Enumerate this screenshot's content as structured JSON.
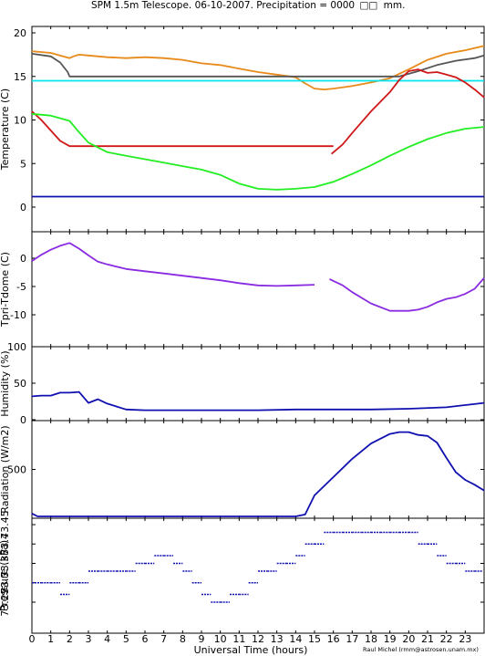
{
  "header": {
    "title": "SPM 1.5m Telescope. 06-10-2007. Precipitation = 0000",
    "title_units": "mm."
  },
  "footer": {
    "xlabel": "Universal Time (hours)",
    "credit": "Raul Michel (rmm@astrosen.unam.mx)"
  },
  "chart_data": [
    {
      "type": "line",
      "panel": "temperature",
      "ylabel": "Temperature (C)",
      "ylim": [
        0,
        20
      ],
      "yticks": [
        "0",
        "5",
        "10",
        "15",
        "20"
      ],
      "xlim": [
        0,
        24
      ],
      "xticks": [
        "0",
        "1",
        "2",
        "3",
        "4",
        "5",
        "6",
        "7",
        "8",
        "9",
        "10",
        "11",
        "12",
        "13",
        "14",
        "15",
        "16",
        "17",
        "18",
        "19",
        "20",
        "21",
        "22",
        "23"
      ],
      "series": [
        {
          "color": "#e88a1a",
          "x": [
            0,
            1,
            2,
            2.2,
            2.5,
            3,
            4,
            5,
            6,
            7,
            8,
            9,
            10,
            11,
            12,
            13,
            14,
            14.5,
            15,
            15.5,
            16,
            17,
            18,
            19,
            20,
            21,
            22,
            23,
            24
          ],
          "y": [
            17.9,
            17.7,
            17.1,
            17.3,
            17.5,
            17.4,
            17.2,
            17.1,
            17.2,
            17.1,
            16.9,
            16.5,
            16.3,
            15.9,
            15.5,
            15.2,
            14.9,
            14.2,
            13.6,
            13.5,
            13.6,
            13.9,
            14.3,
            14.8,
            15.8,
            16.9,
            17.6,
            18.0,
            18.5
          ]
        },
        {
          "color": "#555555",
          "x": [
            0,
            1,
            1.5,
            1.9,
            2,
            3,
            6,
            10,
            14,
            16,
            18,
            19.5,
            20.5,
            21.5,
            22.5,
            23.5,
            24
          ],
          "y": [
            17.6,
            17.3,
            16.6,
            15.5,
            15.0,
            15.0,
            15.0,
            15.0,
            15.0,
            15.0,
            15.0,
            15.0,
            15.6,
            16.3,
            16.8,
            17.1,
            17.4
          ]
        },
        {
          "color": "#00e5ee",
          "x": [
            0,
            24
          ],
          "y": [
            14.5,
            14.5
          ]
        },
        {
          "color": "#d01818",
          "x": [
            0,
            0.5,
            1,
            1.5,
            2,
            4,
            8,
            12,
            16
          ],
          "y": [
            11.0,
            10.0,
            8.8,
            7.6,
            7.0,
            7.0,
            7.0,
            7.0,
            7.0
          ]
        },
        {
          "color": "#d01818",
          "x": [
            15.9,
            16.5,
            17,
            18,
            19,
            19.5,
            20,
            20.5,
            21,
            21.5,
            22,
            22.5,
            23,
            23.5,
            24
          ],
          "y": [
            6.1,
            7.2,
            8.5,
            11.0,
            13.2,
            14.6,
            15.6,
            15.8,
            15.4,
            15.5,
            15.2,
            14.9,
            14.3,
            13.5,
            12.6
          ]
        },
        {
          "color": "#22ee22",
          "x": [
            0,
            1,
            2,
            2.5,
            3,
            4,
            5,
            6,
            7,
            8,
            9,
            10,
            11,
            12,
            13,
            14,
            15,
            16,
            17,
            18,
            19,
            20,
            21,
            22,
            23,
            24
          ],
          "y": [
            10.7,
            10.5,
            9.9,
            8.6,
            7.4,
            6.3,
            5.9,
            5.5,
            5.1,
            4.7,
            4.3,
            3.7,
            2.7,
            2.1,
            2.0,
            2.1,
            2.3,
            2.9,
            3.8,
            4.8,
            5.9,
            6.9,
            7.8,
            8.5,
            9.0,
            9.2
          ]
        },
        {
          "color": "#1010b0",
          "x": [
            0,
            24
          ],
          "y": [
            1.2,
            1.2
          ]
        }
      ]
    },
    {
      "type": "line",
      "panel": "temperature-difference",
      "ylabel": "Tpri-Tdome (C)",
      "ylim": [
        -10,
        2
      ],
      "yticks": [
        "0",
        "-5",
        "-10"
      ],
      "series": [
        {
          "color": "#8a2be2",
          "x": [
            0,
            0.5,
            1,
            1.5,
            2,
            2.5,
            3,
            3.5,
            4,
            5,
            6,
            7,
            8,
            9,
            10,
            11,
            12,
            13,
            14,
            15
          ],
          "y": [
            -0.5,
            0.6,
            1.5,
            2.2,
            2.7,
            1.7,
            0.5,
            -0.6,
            -1.1,
            -1.9,
            -2.3,
            -2.7,
            -3.1,
            -3.5,
            -3.9,
            -4.4,
            -4.8,
            -4.9,
            -4.8,
            -4.7
          ]
        },
        {
          "color": "#8a2be2",
          "x": [
            15.8,
            16.5,
            17,
            18,
            19,
            20,
            20.5,
            21,
            21.5,
            22,
            22.5,
            23,
            23.5,
            24
          ],
          "y": [
            -3.7,
            -4.8,
            -6.0,
            -8.0,
            -9.3,
            -9.3,
            -9.1,
            -8.6,
            -7.8,
            -7.2,
            -6.9,
            -6.3,
            -5.4,
            -3.5
          ]
        }
      ]
    },
    {
      "type": "line",
      "panel": "humidity",
      "ylabel": "Humidity (%)",
      "ylim": [
        0,
        100
      ],
      "yticks": [
        "0",
        "50",
        "100"
      ],
      "series": [
        {
          "color": "#1010b0",
          "x": [
            0,
            0.5,
            1,
            1.5,
            2,
            2.5,
            3,
            3.5,
            4,
            5,
            6,
            8,
            10,
            12,
            14,
            16,
            18,
            20,
            22,
            23,
            24
          ],
          "y": [
            32,
            33,
            33,
            37,
            37,
            38,
            23,
            28,
            22,
            14,
            13,
            13,
            13,
            13,
            14,
            14,
            14,
            15,
            17,
            20,
            23
          ]
        }
      ]
    },
    {
      "type": "line",
      "panel": "radiation",
      "ylabel": "Radiation (W/m2)",
      "ylim": [
        0,
        1000
      ],
      "yticks": [
        "500"
      ],
      "series": [
        {
          "color": "#1010b0",
          "x": [
            0,
            0.3,
            1,
            5,
            10,
            14,
            14.5,
            15,
            16,
            17,
            18,
            19,
            19.5,
            20,
            20.5,
            21,
            21.5,
            22,
            22.5,
            23,
            23.5,
            24
          ],
          "y": [
            40,
            10,
            10,
            10,
            10,
            10,
            30,
            230,
            420,
            610,
            770,
            870,
            890,
            890,
            860,
            850,
            780,
            620,
            470,
            390,
            340,
            280
          ]
        }
      ]
    },
    {
      "type": "scatter",
      "panel": "pressure",
      "ylabel": "Pressure (kPa)",
      "ylim": [
        73.245,
        73.455
      ],
      "yticks": [
        "73.25",
        "73.3",
        "73.35",
        "73.4",
        "73.45"
      ],
      "series": [
        {
          "color": "#1010b0",
          "x": [
            0,
            0.5,
            1,
            1.5,
            2,
            2.5,
            3,
            3.5,
            4,
            4.5,
            5,
            5.5,
            6,
            6.5,
            7,
            7.5,
            8,
            8.5,
            9,
            9.5,
            10,
            10.5,
            11,
            11.5,
            12,
            12.5,
            13,
            13.5,
            14,
            14.5,
            15,
            15.5,
            16,
            16.5,
            17,
            17.5,
            18,
            18.5,
            19,
            19.5,
            20,
            20.5,
            21,
            21.5,
            22,
            22.5,
            23,
            23.5
          ],
          "y": [
            73.3,
            73.3,
            73.3,
            73.27,
            73.3,
            73.3,
            73.33,
            73.33,
            73.33,
            73.33,
            73.33,
            73.35,
            73.35,
            73.37,
            73.37,
            73.35,
            73.33,
            73.3,
            73.27,
            73.25,
            73.25,
            73.27,
            73.27,
            73.3,
            73.33,
            73.33,
            73.35,
            73.35,
            73.37,
            73.4,
            73.4,
            73.43,
            73.43,
            73.43,
            73.43,
            73.43,
            73.43,
            73.43,
            73.43,
            73.43,
            73.43,
            73.4,
            73.4,
            73.37,
            73.35,
            73.35,
            73.33,
            73.33
          ]
        }
      ]
    }
  ]
}
